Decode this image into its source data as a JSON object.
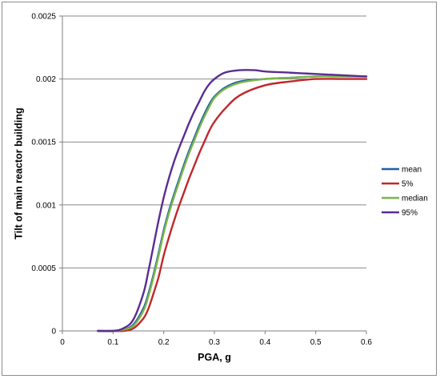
{
  "chart_data": {
    "type": "line",
    "title": "",
    "xlabel": "PGA, g",
    "ylabel": "Tilt of main reactor building",
    "xlim": [
      0,
      0.6
    ],
    "ylim": [
      0,
      0.0025
    ],
    "x_ticks": [
      0,
      0.1,
      0.2,
      0.3,
      0.4,
      0.5,
      0.6
    ],
    "x_tick_labels": [
      "0",
      "0.1",
      "0.2",
      "0.3",
      "0.4",
      "0.5",
      "0.6"
    ],
    "y_ticks": [
      0,
      0.0005,
      0.001,
      0.0015,
      0.002,
      0.0025
    ],
    "y_tick_labels": [
      "0",
      "0.0005",
      "0.001",
      "0.0015",
      "0.002",
      "0.0025"
    ],
    "grid": "horizontal",
    "legend_position": "right",
    "series": [
      {
        "name": "mean",
        "color": "#1f5fa8",
        "x": [
          0.07,
          0.1,
          0.12,
          0.14,
          0.16,
          0.17,
          0.18,
          0.19,
          0.2,
          0.21,
          0.22,
          0.23,
          0.24,
          0.25,
          0.26,
          0.27,
          0.28,
          0.29,
          0.3,
          0.32,
          0.35,
          0.4,
          0.45,
          0.5,
          0.55,
          0.6
        ],
        "y": [
          0,
          0,
          1e-05,
          5e-05,
          0.00018,
          0.0003,
          0.00045,
          0.00062,
          0.0008,
          0.00095,
          0.00108,
          0.0012,
          0.00132,
          0.00143,
          0.00153,
          0.00163,
          0.00172,
          0.0018,
          0.00186,
          0.00193,
          0.00198,
          0.002,
          0.00201,
          0.00202,
          0.00202,
          0.00202
        ]
      },
      {
        "name": "5%",
        "color": "#c0282a",
        "x": [
          0.07,
          0.1,
          0.12,
          0.14,
          0.16,
          0.17,
          0.18,
          0.19,
          0.2,
          0.21,
          0.22,
          0.23,
          0.24,
          0.25,
          0.26,
          0.27,
          0.28,
          0.29,
          0.3,
          0.32,
          0.35,
          0.4,
          0.45,
          0.5,
          0.55,
          0.6
        ],
        "y": [
          0,
          0,
          0,
          2e-05,
          0.0001,
          0.00018,
          0.0003,
          0.00043,
          0.0006,
          0.00074,
          0.00087,
          0.00099,
          0.0011,
          0.00121,
          0.00131,
          0.00141,
          0.0015,
          0.00159,
          0.00166,
          0.00176,
          0.00187,
          0.00195,
          0.00198,
          0.002,
          0.002,
          0.002
        ]
      },
      {
        "name": "median",
        "color": "#7ab648",
        "x": [
          0.07,
          0.1,
          0.12,
          0.14,
          0.16,
          0.17,
          0.18,
          0.19,
          0.2,
          0.21,
          0.22,
          0.23,
          0.24,
          0.25,
          0.26,
          0.27,
          0.28,
          0.29,
          0.3,
          0.32,
          0.35,
          0.4,
          0.45,
          0.5,
          0.55,
          0.6
        ],
        "y": [
          0,
          0,
          1e-05,
          4e-05,
          0.00016,
          0.00028,
          0.00043,
          0.0006,
          0.00078,
          0.00093,
          0.00106,
          0.00118,
          0.0013,
          0.00141,
          0.00151,
          0.00161,
          0.0017,
          0.00178,
          0.00185,
          0.00192,
          0.00197,
          0.002,
          0.00201,
          0.00202,
          0.00202,
          0.00202
        ]
      },
      {
        "name": "95%",
        "color": "#5a2d91",
        "x": [
          0.07,
          0.1,
          0.12,
          0.14,
          0.16,
          0.17,
          0.18,
          0.19,
          0.2,
          0.21,
          0.22,
          0.23,
          0.24,
          0.25,
          0.26,
          0.27,
          0.28,
          0.29,
          0.3,
          0.32,
          0.35,
          0.38,
          0.4,
          0.45,
          0.5,
          0.55,
          0.6
        ],
        "y": [
          0,
          0,
          2e-05,
          9e-05,
          0.0003,
          0.00048,
          0.00068,
          0.00088,
          0.00106,
          0.00121,
          0.00134,
          0.00145,
          0.00155,
          0.00165,
          0.00174,
          0.00182,
          0.0019,
          0.00196,
          0.002,
          0.00205,
          0.00207,
          0.00207,
          0.00206,
          0.00205,
          0.00204,
          0.00203,
          0.00202
        ]
      }
    ]
  }
}
